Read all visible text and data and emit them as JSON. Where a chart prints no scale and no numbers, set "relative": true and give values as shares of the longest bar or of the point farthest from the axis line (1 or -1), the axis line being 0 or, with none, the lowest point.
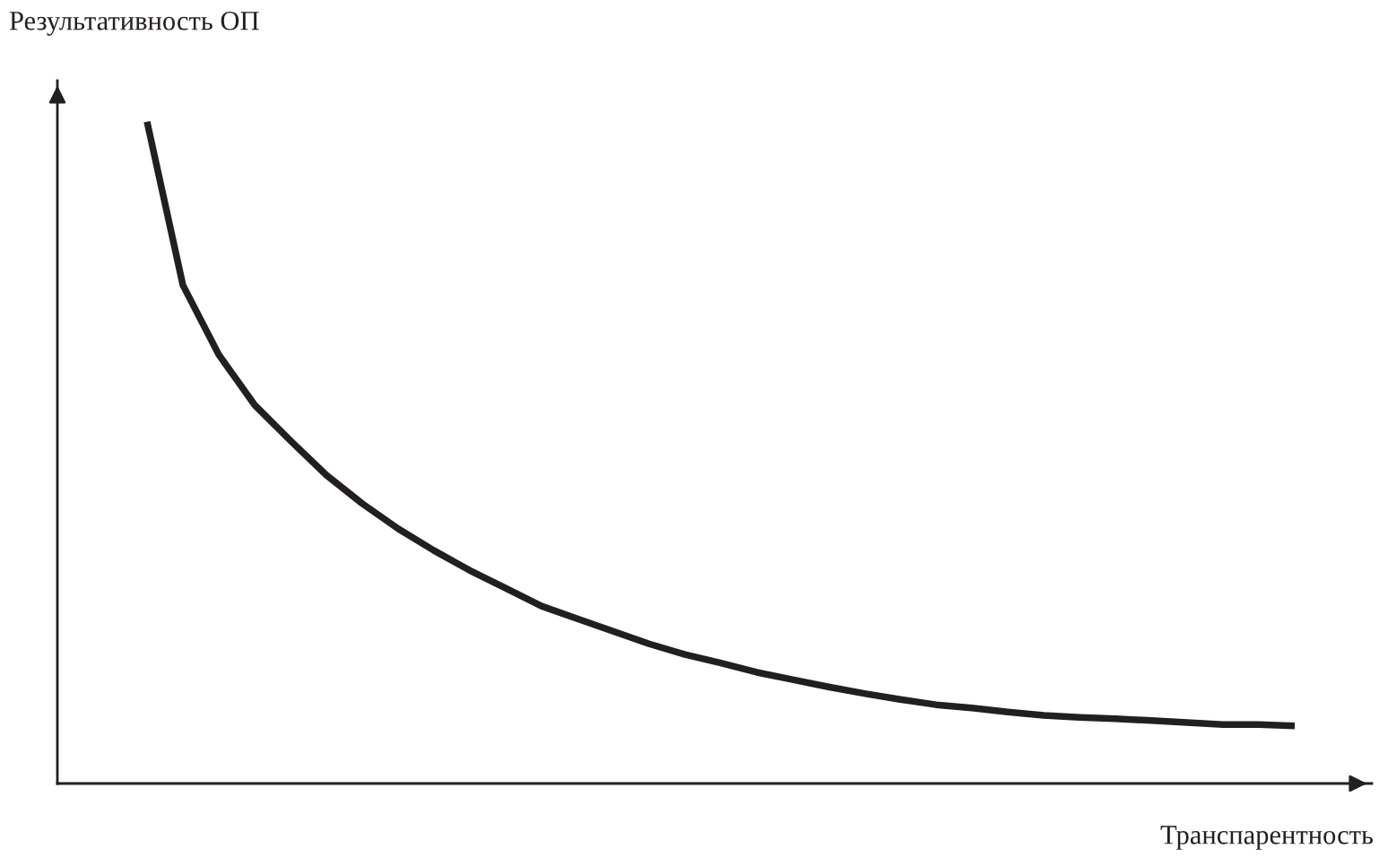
{
  "chart_data": {
    "type": "line",
    "relative": true,
    "xlabel": "Транспарентность",
    "ylabel": "Результативность ОП",
    "categories": [
      null,
      null,
      null,
      null,
      null,
      null,
      null,
      null,
      null,
      null,
      null,
      null,
      null,
      null,
      null,
      null,
      null,
      null,
      null,
      null,
      null,
      null,
      null,
      null,
      null,
      null,
      null,
      null,
      null,
      null,
      null,
      null,
      null
    ],
    "series": [
      {
        "color": "#231f20",
        "values": [
          1,
          0.753,
          0.648,
          0.572,
          0.518,
          0.466,
          0.423,
          0.385,
          0.352,
          0.322,
          0.295,
          0.268,
          0.249,
          0.23,
          0.211,
          0.195,
          0.182,
          0.168,
          0.157,
          0.146,
          0.136,
          0.127,
          0.119,
          0.114,
          0.108,
          0.103,
          0.1,
          0.098,
          0.095,
          0.092,
          0.089,
          0.089,
          0.087
        ]
      }
    ],
    "grid": false,
    "legend": false,
    "marker": "none",
    "line_style": "solid"
  }
}
